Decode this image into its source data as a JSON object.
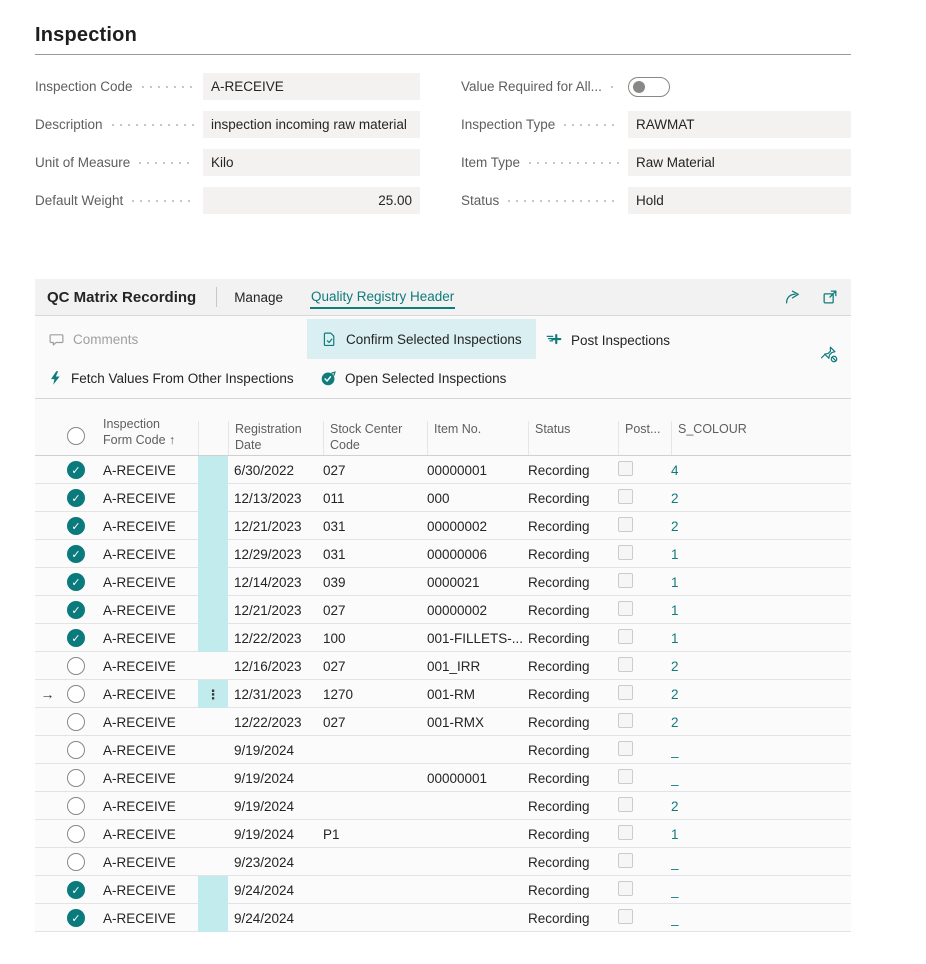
{
  "page": {
    "title": "Inspection"
  },
  "form": {
    "left": [
      {
        "label": "Inspection Code",
        "value": "A-RECEIVE",
        "align": "left"
      },
      {
        "label": "Description",
        "value": "inspection incoming raw material",
        "align": "left"
      },
      {
        "label": "Unit of Measure",
        "value": "Kilo",
        "align": "left"
      },
      {
        "label": "Default Weight",
        "value": "25.00",
        "align": "right"
      }
    ],
    "right": {
      "toggle": {
        "label": "Value Required for All...",
        "state": "off"
      },
      "fields": [
        {
          "label": "Inspection Type",
          "value": "RAWMAT"
        },
        {
          "label": "Item Type",
          "value": "Raw Material"
        },
        {
          "label": "Status",
          "value": "Hold"
        }
      ]
    }
  },
  "card": {
    "title": "QC Matrix Recording",
    "tabs": [
      {
        "label": "Manage",
        "active": false
      },
      {
        "label": "Quality Registry Header",
        "active": true
      }
    ],
    "header_icons": [
      "share-icon",
      "popout-icon"
    ],
    "toolbar": {
      "comments": "Comments",
      "confirm": "Confirm Selected Inspections",
      "post": "Post Inspections",
      "fetch": "Fetch Values From Other Inspections",
      "open": "Open Selected Inspections",
      "pin_icon": "pin-off-icon"
    }
  },
  "table": {
    "columns": [
      {
        "id": "arrow",
        "lines": []
      },
      {
        "id": "select",
        "lines": []
      },
      {
        "id": "form_code",
        "lines": [
          "Inspection",
          "Form Code ↑"
        ]
      },
      {
        "id": "band",
        "lines": []
      },
      {
        "id": "reg_date",
        "lines": [
          "Registration",
          "Date"
        ]
      },
      {
        "id": "stock",
        "lines": [
          "Stock Center",
          "Code"
        ]
      },
      {
        "id": "item",
        "lines": [
          "Item No."
        ]
      },
      {
        "id": "status",
        "lines": [
          "Status"
        ]
      },
      {
        "id": "post",
        "lines": [
          "Post..."
        ]
      },
      {
        "id": "s_colour",
        "lines": [
          "S_COLOUR"
        ]
      }
    ],
    "rows": [
      {
        "selected": true,
        "current": false,
        "form_code": "A-RECEIVE",
        "reg_date": "6/30/2022",
        "stock": "027",
        "item": "00000001",
        "status": "Recording",
        "post": false,
        "s_colour": "4"
      },
      {
        "selected": true,
        "current": false,
        "form_code": "A-RECEIVE",
        "reg_date": "12/13/2023",
        "stock": "011",
        "item": "000",
        "status": "Recording",
        "post": false,
        "s_colour": "2"
      },
      {
        "selected": true,
        "current": false,
        "form_code": "A-RECEIVE",
        "reg_date": "12/21/2023",
        "stock": "031",
        "item": "00000002",
        "status": "Recording",
        "post": false,
        "s_colour": "2"
      },
      {
        "selected": true,
        "current": false,
        "form_code": "A-RECEIVE",
        "reg_date": "12/29/2023",
        "stock": "031",
        "item": "00000006",
        "status": "Recording",
        "post": false,
        "s_colour": "1"
      },
      {
        "selected": true,
        "current": false,
        "form_code": "A-RECEIVE",
        "reg_date": "12/14/2023",
        "stock": "039",
        "item": "0000021",
        "status": "Recording",
        "post": false,
        "s_colour": "1"
      },
      {
        "selected": true,
        "current": false,
        "form_code": "A-RECEIVE",
        "reg_date": "12/21/2023",
        "stock": "027",
        "item": "00000002",
        "status": "Recording",
        "post": false,
        "s_colour": "1"
      },
      {
        "selected": true,
        "current": false,
        "form_code": "A-RECEIVE",
        "reg_date": "12/22/2023",
        "stock": "100",
        "item": "001-FILLETS-...",
        "status": "Recording",
        "post": false,
        "s_colour": "1"
      },
      {
        "selected": false,
        "current": false,
        "form_code": "A-RECEIVE",
        "reg_date": "12/16/2023",
        "stock": "027",
        "item": "001_IRR",
        "status": "Recording",
        "post": false,
        "s_colour": "2"
      },
      {
        "selected": false,
        "current": true,
        "form_code": "A-RECEIVE",
        "reg_date": "12/31/2023",
        "stock": "1270",
        "item": "001-RM",
        "status": "Recording",
        "post": false,
        "s_colour": "2"
      },
      {
        "selected": false,
        "current": false,
        "form_code": "A-RECEIVE",
        "reg_date": "12/22/2023",
        "stock": "027",
        "item": "001-RMX",
        "status": "Recording",
        "post": false,
        "s_colour": "2"
      },
      {
        "selected": false,
        "current": false,
        "form_code": "A-RECEIVE",
        "reg_date": "9/19/2024",
        "stock": "",
        "item": "",
        "status": "Recording",
        "post": false,
        "s_colour": "_"
      },
      {
        "selected": false,
        "current": false,
        "form_code": "A-RECEIVE",
        "reg_date": "9/19/2024",
        "stock": "",
        "item": "00000001",
        "status": "Recording",
        "post": false,
        "s_colour": "_"
      },
      {
        "selected": false,
        "current": false,
        "form_code": "A-RECEIVE",
        "reg_date": "9/19/2024",
        "stock": "",
        "item": "",
        "status": "Recording",
        "post": false,
        "s_colour": "2"
      },
      {
        "selected": false,
        "current": false,
        "form_code": "A-RECEIVE",
        "reg_date": "9/19/2024",
        "stock": "P1",
        "item": "",
        "status": "Recording",
        "post": false,
        "s_colour": "1"
      },
      {
        "selected": false,
        "current": false,
        "form_code": "A-RECEIVE",
        "reg_date": "9/23/2024",
        "stock": "",
        "item": "",
        "status": "Recording",
        "post": false,
        "s_colour": "_"
      },
      {
        "selected": true,
        "current": false,
        "form_code": "A-RECEIVE",
        "reg_date": "9/24/2024",
        "stock": "",
        "item": "",
        "status": "Recording",
        "post": false,
        "s_colour": "_"
      },
      {
        "selected": true,
        "current": false,
        "form_code": "A-RECEIVE",
        "reg_date": "9/24/2024",
        "stock": "",
        "item": "",
        "status": "Recording",
        "post": false,
        "s_colour": "_"
      }
    ]
  },
  "colors": {
    "accent_teal": "#0f7b7b",
    "check_circle": "#0a7a7d",
    "selected_band": "#c2ebee",
    "confirm_button_bg": "#d9eff1",
    "field_bg": "#f3f2f1",
    "label_gray": "#605e5c",
    "text": "#252423",
    "disabled_gray": "#a19f9d",
    "row_border": "#e3e3e3"
  }
}
